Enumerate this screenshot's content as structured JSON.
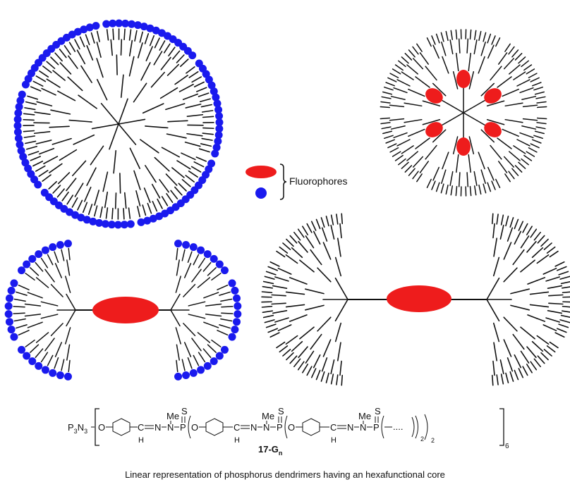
{
  "legend": {
    "label": "Fluorophores",
    "red_color": "#ee1c1c",
    "blue_color": "#1a1aee"
  },
  "formula": {
    "text": "P3N3[O–C6H4–CH=N–N(Me)–P(S)(O–C6H4–CH=N–N(Me)–P(S)(O–C6H4–CH=N–N(Me)–P(S)(…))2)2]6",
    "p3n3": "P",
    "p3n3_sub1": "3",
    "n_letter": "N",
    "p3n3_sub2": "3",
    "o1": "O",
    "ch1": "H",
    "c1": "C",
    "n1": "N",
    "n2": "N",
    "me1": "Me",
    "s1": "S",
    "p1": "P",
    "o2": "O",
    "ch2": "H",
    "c2": "C",
    "n3": "N",
    "n4": "N",
    "me2": "Me",
    "s2": "S",
    "p2": "P",
    "o3": "O",
    "ch3": "H",
    "c3": "C",
    "n5": "N",
    "n6": "N",
    "me3": "Me",
    "s3": "S",
    "p3": "P",
    "ellipsis": "....",
    "sub_2a": "2",
    "sub_2b": "2",
    "sub_6": "6",
    "name": "17-G",
    "name_sub": "n"
  },
  "caption": "Linear representation of phosphorus dendrimers having an hexafunctional core"
}
